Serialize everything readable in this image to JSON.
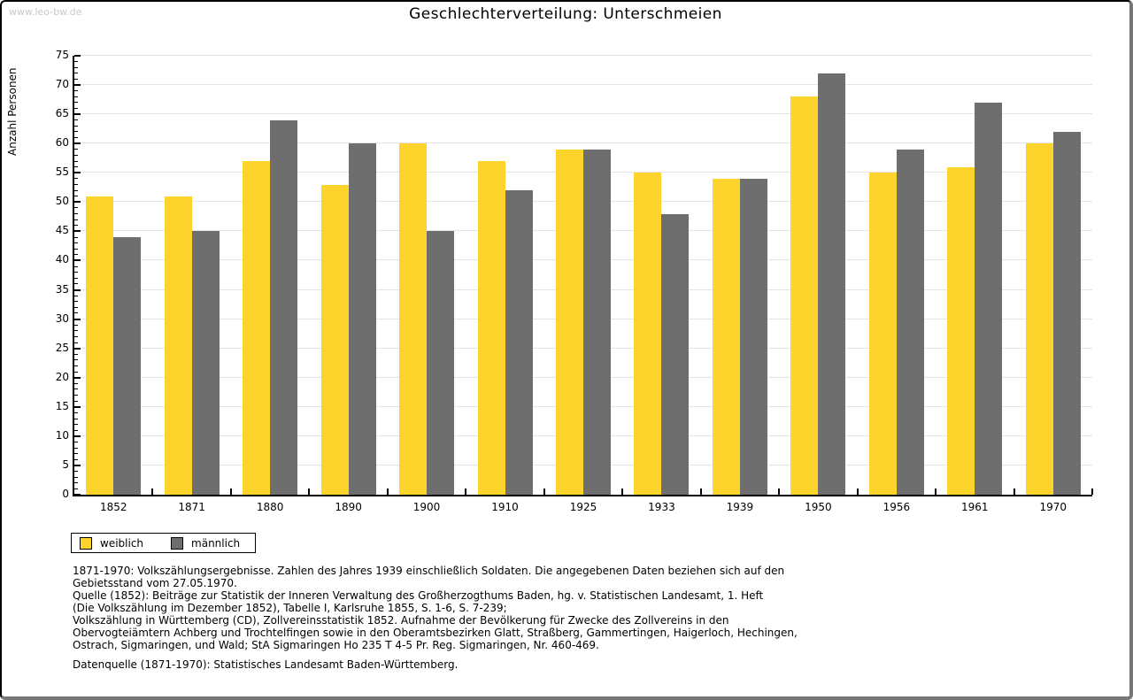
{
  "watermark": "www.leo-bw.de",
  "title": "Geschlechterverteilung: Unterschmeien",
  "chart_data": {
    "type": "bar",
    "title": "Geschlechterverteilung: Unterschmeien",
    "categories": [
      "1852",
      "1871",
      "1880",
      "1890",
      "1900",
      "1910",
      "1925",
      "1933",
      "1939",
      "1950",
      "1956",
      "1961",
      "1970"
    ],
    "series": [
      {
        "name": "weiblich",
        "color": "#fdd42b",
        "values": [
          51,
          51,
          57,
          53,
          60,
          57,
          59,
          55,
          54,
          68,
          55,
          56,
          60
        ]
      },
      {
        "name": "männlich",
        "color": "#6e6e6e",
        "values": [
          44,
          45,
          64,
          60,
          45,
          52,
          59,
          48,
          54,
          72,
          59,
          67,
          62
        ]
      }
    ],
    "xlabel": "",
    "ylabel": "Anzahl Personen",
    "ylim": [
      0,
      75
    ],
    "yticks": [
      0,
      5,
      10,
      15,
      20,
      25,
      30,
      35,
      40,
      45,
      50,
      55,
      60,
      65,
      70,
      75
    ],
    "ytick_step": 5,
    "minor_tick_step": 1,
    "grid": true,
    "gridline_color": "#e4e4e4",
    "legend_position": "bottom-left"
  },
  "legend": {
    "items": [
      {
        "label": "weiblich",
        "color": "#fdd42b"
      },
      {
        "label": "männlich",
        "color": "#6e6e6e"
      }
    ]
  },
  "footnote": {
    "lines": [
      "1871-1970: Volkszählungsergebnisse. Zahlen des Jahres 1939 einschließlich Soldaten. Die angegebenen Daten beziehen sich auf den",
      "Gebietsstand vom 27.05.1970.",
      "Quelle (1852): Beiträge zur Statistik der Inneren Verwaltung des Großherzogthums Baden, hg. v. Statistischen Landesamt, 1. Heft",
      "(Die Volkszählung im Dezember 1852), Tabelle I, Karlsruhe 1855, S. 1-6, S. 7-239;",
      "Volkszählung in Württemberg (CD), Zollvereinsstatistik 1852. Aufnahme der Bevölkerung für Zwecke des Zollvereins in den",
      "Obervogteiämtern Achberg und Trochtelfingen sowie in den Oberamtsbezirken Glatt, Straßberg, Gammertingen, Haigerloch, Hechingen,",
      "Ostrach, Sigmaringen, und Wald; StA Sigmaringen Ho 235 T 4-5 Pr. Reg. Sigmaringen, Nr. 460-469."
    ],
    "datenquelle": "Datenquelle (1871-1970): Statistisches Landesamt Baden-Württemberg."
  }
}
